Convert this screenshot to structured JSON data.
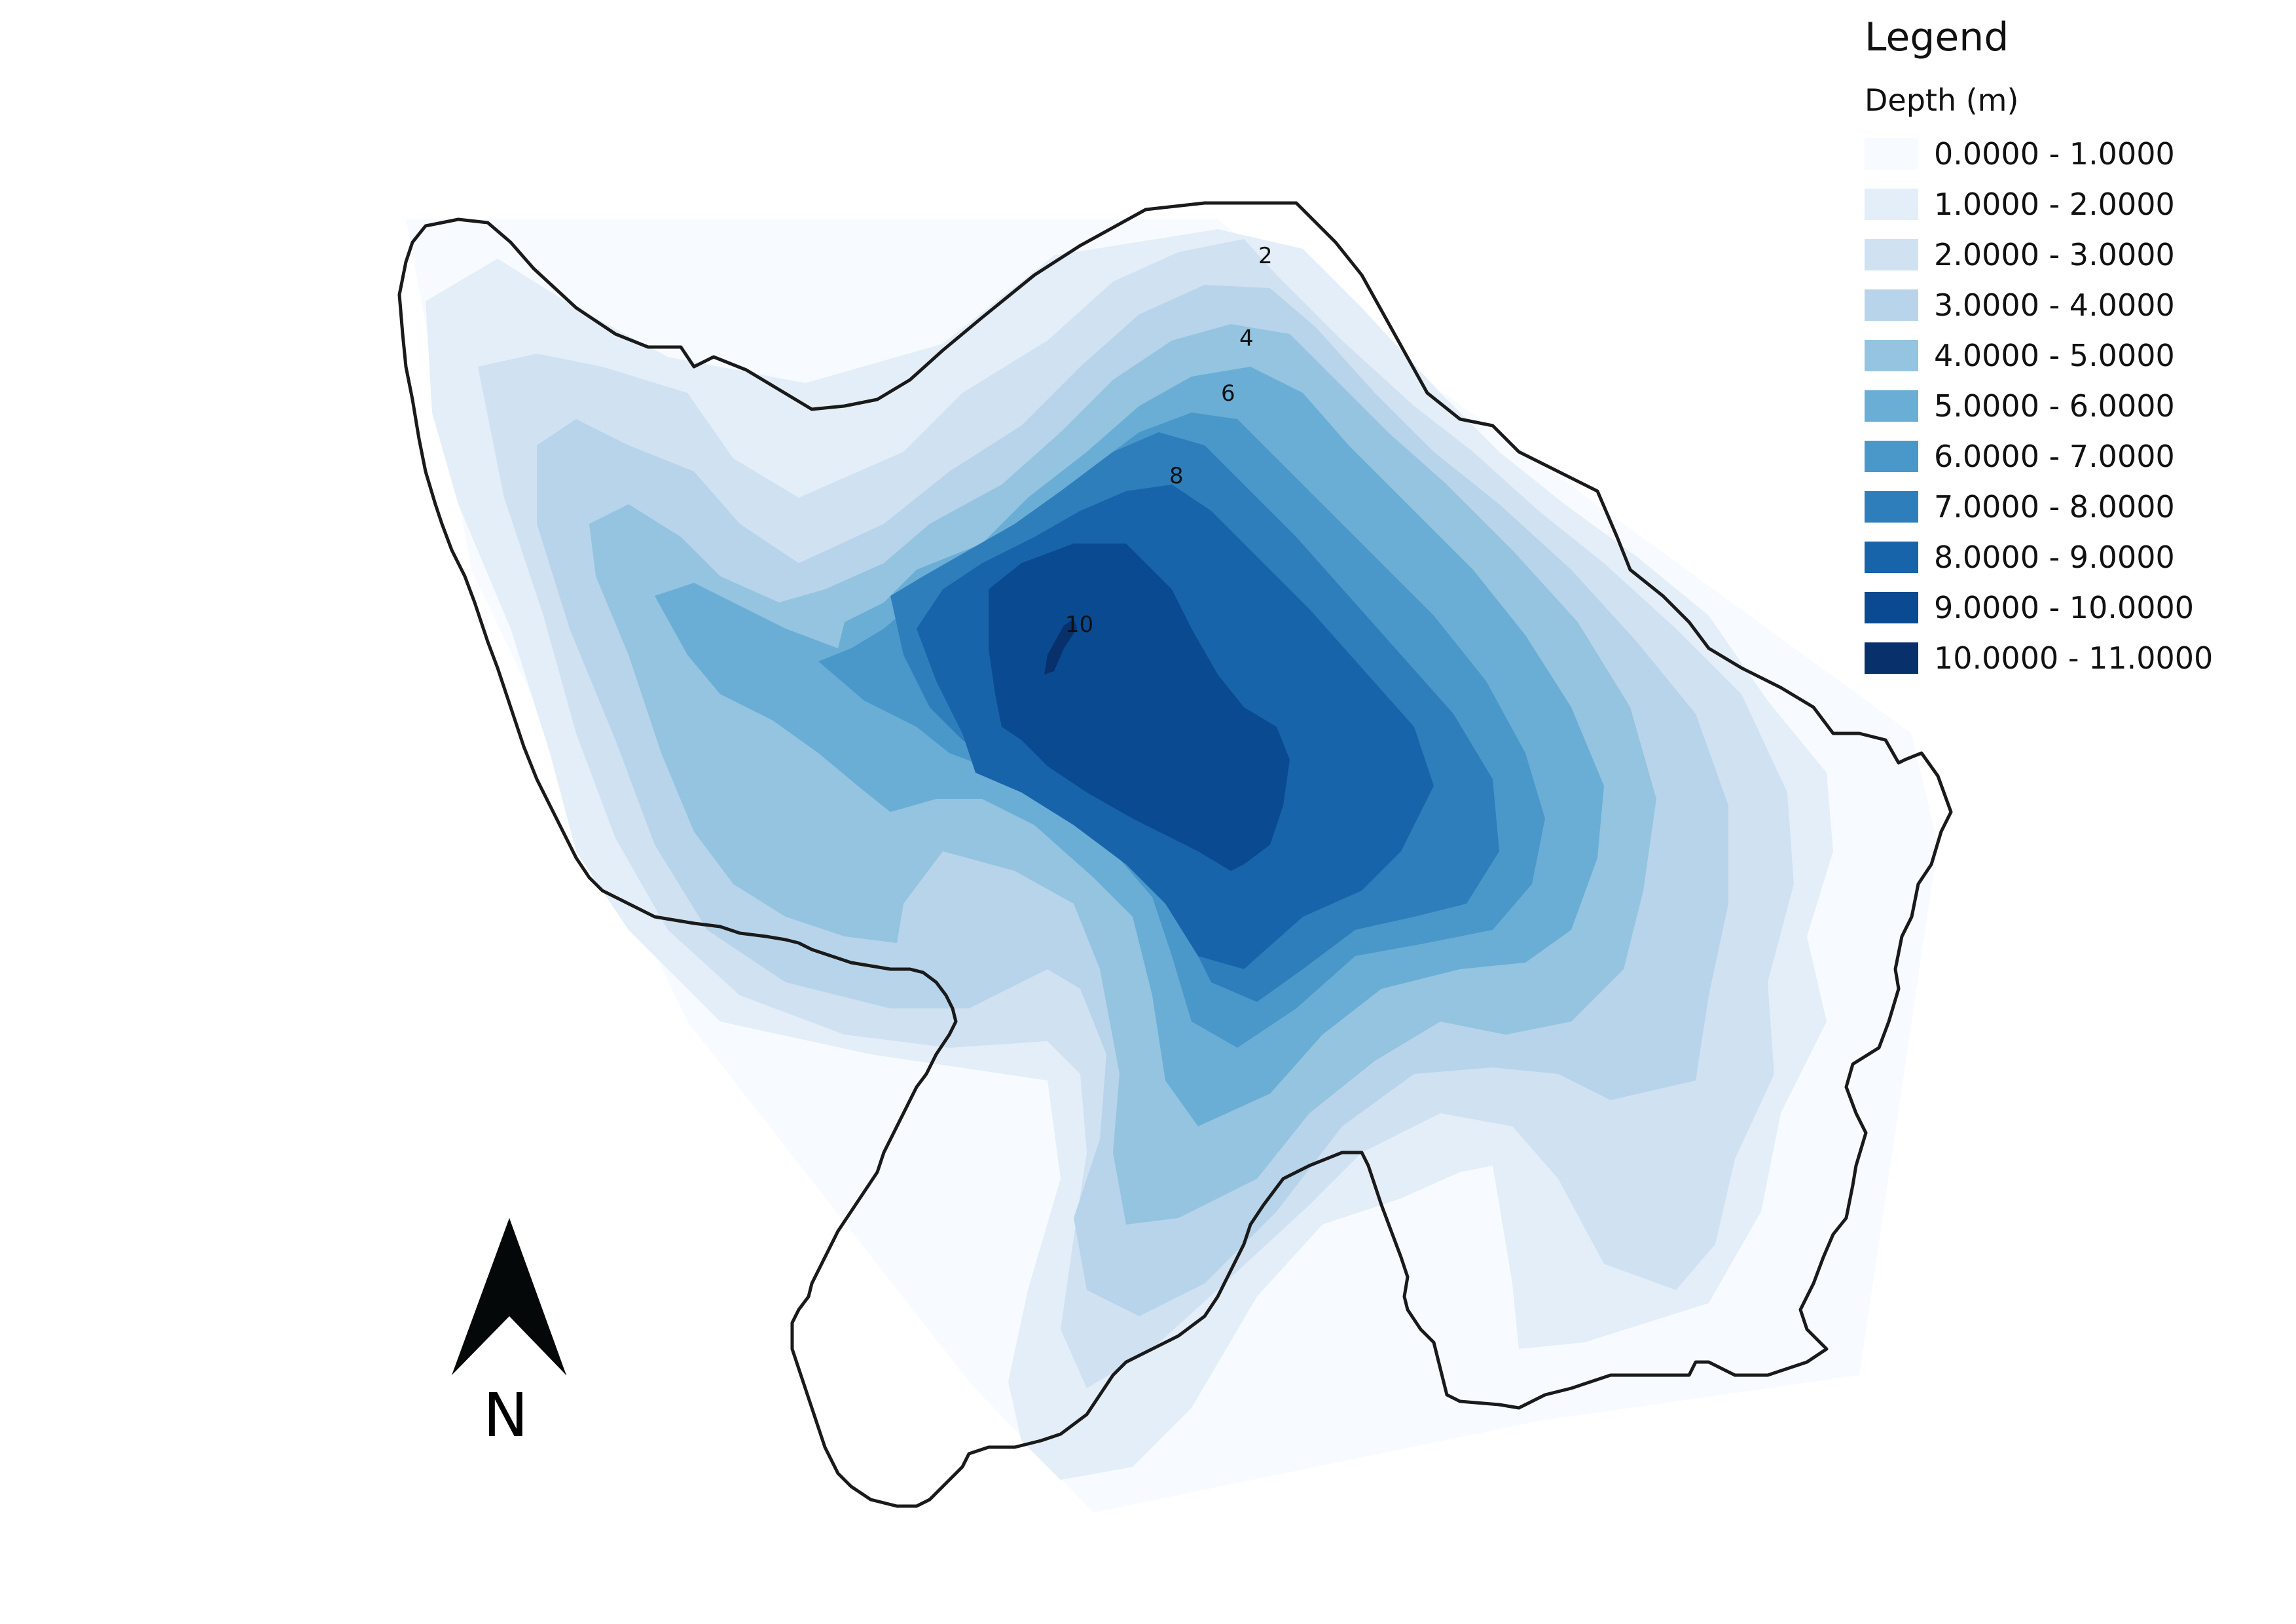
{
  "legend": {
    "title": "Legend",
    "subtitle": "Depth (m)",
    "classes": [
      {
        "label": "0.0000 - 1.0000",
        "color": "#f7fbff"
      },
      {
        "label": "1.0000 - 2.0000",
        "color": "#e3eef9"
      },
      {
        "label": "2.0000 - 3.0000",
        "color": "#d0e1f2"
      },
      {
        "label": "3.0000 - 4.0000",
        "color": "#b7d4ea"
      },
      {
        "label": "4.0000 - 5.0000",
        "color": "#94c4df"
      },
      {
        "label": "5.0000 - 6.0000",
        "color": "#6aaed6"
      },
      {
        "label": "6.0000 - 7.0000",
        "color": "#4a98c9"
      },
      {
        "label": "7.0000 - 8.0000",
        "color": "#2e7ebc"
      },
      {
        "label": "8.0000 - 9.0000",
        "color": "#1764ab"
      },
      {
        "label": "9.0000 - 10.0000",
        "color": "#0a4a90"
      },
      {
        "label": "10.0000 - 11.0000",
        "color": "#08306b"
      }
    ]
  },
  "contour_labels": [
    "2",
    "4",
    "6",
    "8",
    "10"
  ],
  "north_arrow": {
    "letter": "N",
    "icon": "north-arrow-icon"
  },
  "colors": {
    "shoreline": "#1a1a1a"
  }
}
